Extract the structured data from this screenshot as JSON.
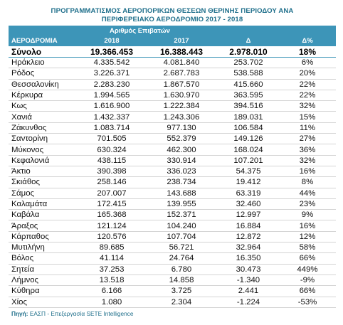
{
  "title_line1": "ΠΡΟΓΡΑΜΜΑΤΙΣΜΟΣ ΑΕΡΟΠΟΡΙΚΩΝ ΘΕΣΕΩΝ ΘΕΡΙΝΗΣ ΠΕΡΙΟΔΟΥ ΑΝΑ",
  "title_line2": "ΠΕΡΙΦΕΡΕΙΑΚΟ ΑΕΡΟΔΡΟΜΙΟ 2017 - 2018",
  "subheader": "Αριθμός Επιβατών",
  "columns": [
    "ΑΕΡΟΔΡΟΜΙΑ",
    "2018",
    "2017",
    "Δ",
    "Δ%"
  ],
  "total": [
    "Σύνολο",
    "19.366.453",
    "16.388.443",
    "2.978.010",
    "18%"
  ],
  "rows": [
    [
      "Ηράκλειο",
      "4.335.542",
      "4.081.840",
      "253.702",
      "6%"
    ],
    [
      "Ρόδος",
      "3.226.371",
      "2.687.783",
      "538.588",
      "20%"
    ],
    [
      "Θεσσαλονίκη",
      "2.283.230",
      "1.867.570",
      "415.660",
      "22%"
    ],
    [
      "Κέρκυρα",
      "1.994.565",
      "1.630.970",
      "363.595",
      "22%"
    ],
    [
      "Κως",
      "1.616.900",
      "1.222.384",
      "394.516",
      "32%"
    ],
    [
      "Χανιά",
      "1.432.337",
      "1.243.306",
      "189.031",
      "15%"
    ],
    [
      "Ζάκυνθος",
      "1.083.714",
      "977.130",
      "106.584",
      "11%"
    ],
    [
      "Σαντορίνη",
      "701.505",
      "552.379",
      "149.126",
      "27%"
    ],
    [
      "Μύκονος",
      "630.324",
      "462.300",
      "168.024",
      "36%"
    ],
    [
      "Κεφαλονιά",
      "438.115",
      "330.914",
      "107.201",
      "32%"
    ],
    [
      "Άκτιο",
      "390.398",
      "336.023",
      "54.375",
      "16%"
    ],
    [
      "Σκιάθος",
      "258.146",
      "238.734",
      "19.412",
      "8%"
    ],
    [
      "Σάμος",
      "207.007",
      "143.688",
      "63.319",
      "44%"
    ],
    [
      "Καλαμάτα",
      "172.415",
      "139.955",
      "32.460",
      "23%"
    ],
    [
      "Καβάλα",
      "165.368",
      "152.371",
      "12.997",
      "9%"
    ],
    [
      "Άραξος",
      "121.124",
      "104.240",
      "16.884",
      "16%"
    ],
    [
      "Κάρπαθος",
      "120.576",
      "107.704",
      "12.872",
      "12%"
    ],
    [
      "Μυτιλήνη",
      "89.685",
      "56.721",
      "32.964",
      "58%"
    ],
    [
      "Βόλος",
      "41.114",
      "24.764",
      "16.350",
      "66%"
    ],
    [
      "Σητεία",
      "37.253",
      "6.780",
      "30.473",
      "449%"
    ],
    [
      "Λήμνος",
      "13.518",
      "14.858",
      "-1.340",
      "-9%"
    ],
    [
      "Κύθηρα",
      "6.166",
      "3.725",
      "2.441",
      "66%"
    ],
    [
      "Χίος",
      "1.080",
      "2.304",
      "-1.224",
      "-53%"
    ]
  ],
  "source_label": "Πηγή:",
  "source_text": "ΕΑΣΠ - Επεξεργασία SETE Intelligence",
  "colors": {
    "header_bg": "#3d95b8",
    "title": "#1f6f8b"
  }
}
